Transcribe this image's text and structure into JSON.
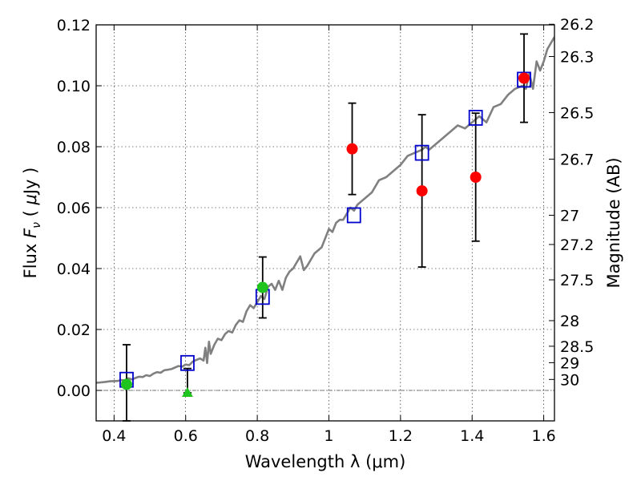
{
  "chart_data": {
    "type": "scatter",
    "xlabel": "Wavelength  λ (μm)",
    "ylabel": "Flux  F_ν  ( μJy )",
    "ylabel_parts": {
      "pre": "Flux  ",
      "var": "F",
      "sub": "ν",
      "mid": "  (  ",
      "mu": "μ",
      "post": "Jy )"
    },
    "y2label": "Magnitude (AB)",
    "xlim": [
      0.35,
      1.63
    ],
    "ylim": [
      -0.01,
      0.12
    ],
    "grid": true,
    "x_ticks": [
      0.4,
      0.6,
      0.8,
      1.0,
      1.2,
      1.4,
      1.6
    ],
    "x_tick_labels": [
      "0.4",
      "0.6",
      "0.8",
      "1",
      "1.2",
      "1.4",
      "1.6"
    ],
    "y_ticks": [
      0.0,
      0.02,
      0.04,
      0.06,
      0.08,
      0.1,
      0.12
    ],
    "y_tick_labels": [
      "0.00",
      "0.02",
      "0.04",
      "0.06",
      "0.08",
      "0.10",
      "0.12"
    ],
    "magnitude_ticks": [
      {
        "label": "26.2",
        "flux": 0.1202
      },
      {
        "label": "26.3",
        "flux": 0.1096
      },
      {
        "label": "26.5",
        "flux": 0.0912
      },
      {
        "label": "26.7",
        "flux": 0.0759
      },
      {
        "label": "27",
        "flux": 0.0575
      },
      {
        "label": "27.2",
        "flux": 0.0479
      },
      {
        "label": "27.5",
        "flux": 0.0363
      },
      {
        "label": "28",
        "flux": 0.0229
      },
      {
        "label": "28.5",
        "flux": 0.0145
      },
      {
        "label": "29",
        "flux": 0.0091
      },
      {
        "label": "30",
        "flux": 0.0036
      }
    ],
    "series": [
      {
        "name": "model spectrum",
        "kind": "line",
        "color": "#808080",
        "x": [
          0.35,
          0.37,
          0.39,
          0.41,
          0.42,
          0.43,
          0.44,
          0.45,
          0.46,
          0.47,
          0.48,
          0.49,
          0.5,
          0.51,
          0.52,
          0.53,
          0.54,
          0.55,
          0.56,
          0.57,
          0.58,
          0.59,
          0.6,
          0.61,
          0.62,
          0.63,
          0.64,
          0.65,
          0.655,
          0.66,
          0.665,
          0.67,
          0.68,
          0.69,
          0.7,
          0.71,
          0.72,
          0.73,
          0.74,
          0.75,
          0.76,
          0.77,
          0.78,
          0.79,
          0.8,
          0.81,
          0.82,
          0.83,
          0.84,
          0.85,
          0.86,
          0.87,
          0.88,
          0.89,
          0.9,
          0.91,
          0.92,
          0.93,
          0.94,
          0.95,
          0.96,
          0.97,
          0.98,
          0.99,
          1.0,
          1.01,
          1.02,
          1.03,
          1.04,
          1.05,
          1.06,
          1.07,
          1.08,
          1.09,
          1.1,
          1.12,
          1.14,
          1.16,
          1.18,
          1.2,
          1.22,
          1.24,
          1.26,
          1.27,
          1.28,
          1.3,
          1.32,
          1.34,
          1.36,
          1.38,
          1.4,
          1.42,
          1.44,
          1.46,
          1.48,
          1.5,
          1.52,
          1.54,
          1.55,
          1.56,
          1.57,
          1.58,
          1.59,
          1.6,
          1.61,
          1.62,
          1.63
        ],
        "y": [
          0.0025,
          0.0027,
          0.003,
          0.0031,
          0.0034,
          0.0033,
          0.004,
          0.0036,
          0.0041,
          0.0045,
          0.0044,
          0.005,
          0.0047,
          0.0055,
          0.006,
          0.0058,
          0.0066,
          0.0068,
          0.007,
          0.0075,
          0.008,
          0.0078,
          0.0085,
          0.0083,
          0.0095,
          0.01,
          0.0105,
          0.0098,
          0.014,
          0.009,
          0.016,
          0.012,
          0.015,
          0.017,
          0.0165,
          0.0185,
          0.0195,
          0.019,
          0.0215,
          0.023,
          0.0225,
          0.026,
          0.028,
          0.027,
          0.029,
          0.031,
          0.03,
          0.034,
          0.035,
          0.033,
          0.036,
          0.033,
          0.037,
          0.039,
          0.04,
          0.042,
          0.044,
          0.0395,
          0.041,
          0.043,
          0.045,
          0.046,
          0.047,
          0.05,
          0.053,
          0.052,
          0.055,
          0.056,
          0.056,
          0.058,
          0.06,
          0.059,
          0.061,
          0.062,
          0.063,
          0.065,
          0.069,
          0.07,
          0.072,
          0.074,
          0.077,
          0.078,
          0.079,
          0.08,
          0.079,
          0.081,
          0.083,
          0.085,
          0.087,
          0.086,
          0.088,
          0.09,
          0.088,
          0.093,
          0.094,
          0.097,
          0.099,
          0.1,
          0.099,
          0.104,
          0.099,
          0.108,
          0.105,
          0.108,
          0.112,
          0.114,
          0.116
        ]
      },
      {
        "name": "model photometry",
        "kind": "marker",
        "marker": "square-open",
        "color": "#0000cc",
        "x": [
          0.435,
          0.605,
          0.815,
          1.07,
          1.26,
          1.41,
          1.545
        ],
        "y": [
          0.0035,
          0.009,
          0.0307,
          0.0575,
          0.078,
          0.0895,
          0.102
        ]
      },
      {
        "name": "observed (red)",
        "kind": "marker",
        "marker": "circle",
        "color": "#ff0000",
        "x": [
          1.065,
          1.26,
          1.41,
          1.545
        ],
        "y": [
          0.0793,
          0.0655,
          0.07,
          0.1025
        ],
        "yerr": [
          0.015,
          0.025,
          0.021,
          0.0145
        ]
      },
      {
        "name": "observed (green)",
        "kind": "marker",
        "marker": "circle",
        "color": "#1fc41f",
        "x": [
          0.435,
          0.815
        ],
        "y": [
          0.002,
          0.0338
        ],
        "yerr_low": [
          0.013,
          0.01
        ],
        "yerr_high": [
          0.013,
          0.01
        ]
      },
      {
        "name": "upper limit (green)",
        "kind": "marker",
        "marker": "triangle",
        "color": "#1fc41f",
        "x": [
          0.605
        ],
        "y": [
          -0.0008
        ],
        "yerr_low": [
          0.0
        ],
        "yerr_high": [
          0.008
        ]
      }
    ]
  }
}
